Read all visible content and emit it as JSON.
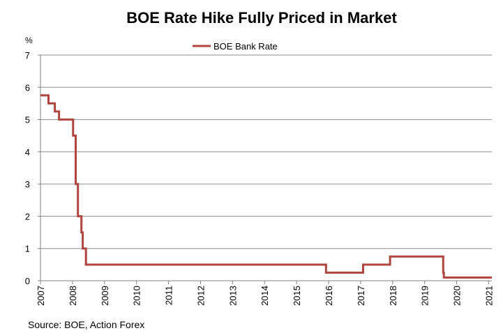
{
  "chart_data": {
    "type": "line",
    "title": "BOE Rate Hike Fully Priced in Market",
    "y_unit": "%",
    "xlabel": "",
    "ylabel": "",
    "xlim": [
      2007,
      2021.1
    ],
    "ylim": [
      0,
      7
    ],
    "y_ticks": [
      "0",
      "1",
      "2",
      "3",
      "4",
      "5",
      "6",
      "7"
    ],
    "x_ticks": [
      "2007",
      "2008",
      "2009",
      "2010",
      "2011",
      "2012",
      "2013",
      "2014",
      "2015",
      "2016",
      "2017",
      "2018",
      "2019",
      "2020",
      "2021"
    ],
    "grid": "horizontal",
    "legend_position": "top-center",
    "line_color": "#b0453f",
    "series": [
      {
        "name": "BOE Bank Rate",
        "step": true,
        "points": [
          [
            2007.0,
            5.75
          ],
          [
            2007.25,
            5.5
          ],
          [
            2007.45,
            5.25
          ],
          [
            2007.58,
            5.0
          ],
          [
            2008.0,
            5.0
          ],
          [
            2008.02,
            4.5
          ],
          [
            2008.1,
            3.0
          ],
          [
            2008.17,
            2.0
          ],
          [
            2008.28,
            1.5
          ],
          [
            2008.32,
            1.0
          ],
          [
            2008.42,
            0.5
          ],
          [
            2015.92,
            0.25
          ],
          [
            2017.08,
            0.5
          ],
          [
            2017.92,
            0.75
          ],
          [
            2019.58,
            0.25
          ],
          [
            2019.6,
            0.1
          ],
          [
            2021.1,
            0.1
          ]
        ]
      }
    ],
    "source": "Source: BOE, Action Forex"
  }
}
